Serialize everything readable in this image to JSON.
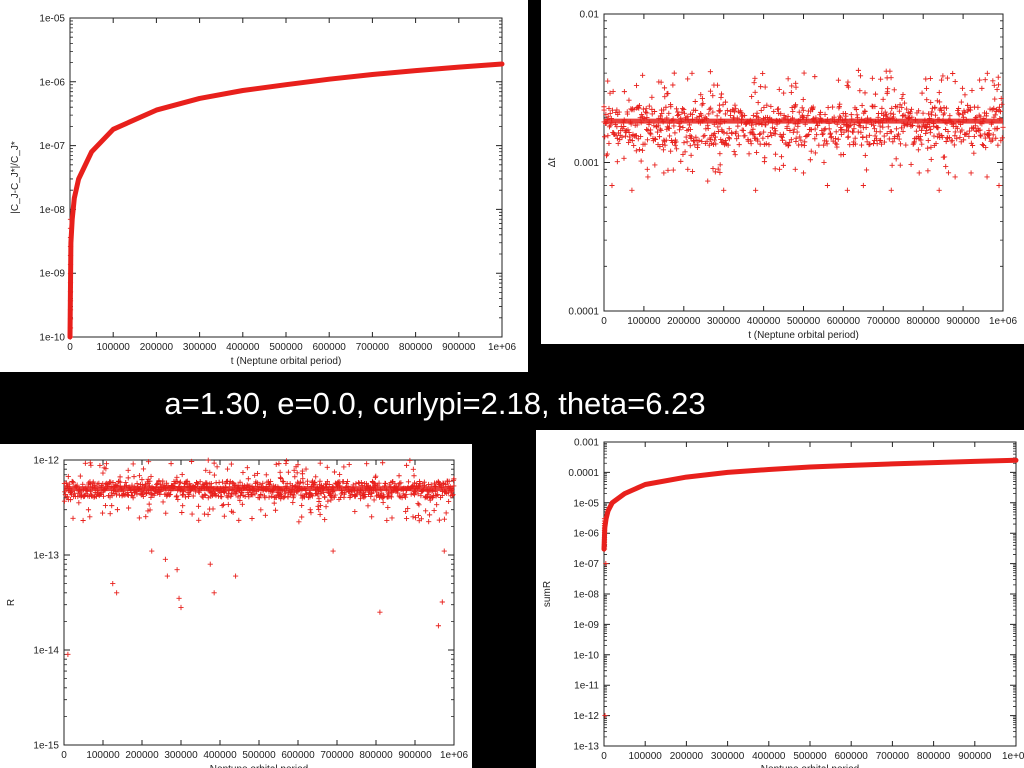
{
  "caption": "a=1.30, e=0.0, curlypi=2.18, theta=6.23",
  "colors": {
    "series": "#e8201c",
    "background": "#000000",
    "panel": "#ffffff",
    "axis": "#222222"
  },
  "chart_data": [
    {
      "id": "top-left",
      "type": "line",
      "title": "",
      "xlabel": "t (Neptune orbital period)",
      "ylabel": "|C_J-C_J*|/C_J*",
      "ylabel_parts": {
        "main": "|C",
        "sub1": "J",
        "mid": "-C",
        "sub2": "J",
        "sup2": "*",
        "tail": "|/C",
        "sub3": "J",
        "sup3": "*"
      },
      "xlim": [
        0,
        1000000
      ],
      "ylim": [
        1e-10,
        1e-05
      ],
      "yscale": "log",
      "xticks": [
        "0",
        "100000",
        "200000",
        "300000",
        "400000",
        "500000",
        "600000",
        "700000",
        "800000",
        "900000",
        "1e+06"
      ],
      "yticks": [
        "1e-10",
        "1e-09",
        "1e-08",
        "1e-07",
        "1e-06",
        "1e-05"
      ],
      "grid": false,
      "series": [
        {
          "x": [
            0,
            2000,
            5000,
            10000,
            20000,
            50000,
            100000,
            200000,
            300000,
            400000,
            500000,
            600000,
            700000,
            800000,
            900000,
            1000000
          ],
          "y": [
            1e-10,
            3e-09,
            7e-09,
            1.5e-08,
            3e-08,
            8e-08,
            1.8e-07,
            3.6e-07,
            5.5e-07,
            7.3e-07,
            9e-07,
            1.1e-06,
            1.3e-06,
            1.5e-06,
            1.7e-06,
            1.9e-06
          ]
        }
      ]
    },
    {
      "id": "top-right",
      "type": "scatter",
      "title": "",
      "xlabel": "t (Neptune orbital period)",
      "ylabel": "Δt",
      "xlim": [
        0,
        1000000
      ],
      "ylim": [
        0.0001,
        0.01
      ],
      "yscale": "log",
      "xticks": [
        "0",
        "100000",
        "200000",
        "300000",
        "400000",
        "500000",
        "600000",
        "700000",
        "800000",
        "900000",
        "1e+06"
      ],
      "yticks": [
        "0.0001",
        "0.001",
        "0.01"
      ],
      "grid": false,
      "series": [
        {
          "band_center": 0.0019,
          "band_low": 0.0013,
          "band_high": 0.0025,
          "sawtooth_period": 83000,
          "outliers_x": [
            20000,
            70000,
            110000,
            150000,
            210000,
            260000,
            300000,
            380000,
            440000,
            500000,
            560000,
            610000,
            650000,
            720000,
            790000,
            840000,
            880000,
            920000,
            960000,
            990000
          ],
          "outliers_y": [
            0.0007,
            0.00065,
            0.0008,
            0.00085,
            0.0009,
            0.00075,
            0.00065,
            0.00065,
            0.0009,
            0.00085,
            0.0007,
            0.00065,
            0.0007,
            0.00065,
            0.00085,
            0.00065,
            0.0008,
            0.00085,
            0.0008,
            0.0007
          ]
        }
      ]
    },
    {
      "id": "bottom-left",
      "type": "scatter",
      "title": "",
      "xlabel": "Neptune orbital period",
      "ylabel": "R",
      "xlim": [
        0,
        1000000
      ],
      "ylim": [
        1e-15,
        1e-12
      ],
      "yscale": "log",
      "xticks": [
        "0",
        "100000",
        "200000",
        "300000",
        "400000",
        "500000",
        "600000",
        "700000",
        "800000",
        "900000",
        "1e+06"
      ],
      "yticks": [
        "1e-15",
        "1e-14",
        "1e-13",
        "1e-12"
      ],
      "grid": false,
      "series": [
        {
          "band_center": 5e-13,
          "band_low": 4e-13,
          "band_high": 6e-13,
          "outliers_x": [
            10000,
            125000,
            135000,
            225000,
            260000,
            265000,
            290000,
            295000,
            300000,
            375000,
            385000,
            440000,
            690000,
            810000,
            960000,
            970000,
            975000
          ],
          "outliers_y": [
            9e-15,
            5e-14,
            4e-14,
            1.1e-13,
            9e-14,
            6e-14,
            7e-14,
            3.5e-14,
            2.8e-14,
            8e-14,
            4e-14,
            6e-14,
            1.1e-13,
            2.5e-14,
            1.8e-14,
            3.2e-14,
            1.1e-13
          ]
        }
      ]
    },
    {
      "id": "bottom-right",
      "type": "line",
      "title": "",
      "xlabel": "Neptune orbital period",
      "ylabel": "sumR",
      "xlim": [
        0,
        1000000
      ],
      "ylim": [
        1e-13,
        0.001
      ],
      "yscale": "log",
      "xticks": [
        "0",
        "100000",
        "200000",
        "300000",
        "400000",
        "500000",
        "600000",
        "700000",
        "800000",
        "900000",
        "1e+06"
      ],
      "yticks": [
        "1e-13",
        "1e-12",
        "1e-11",
        "1e-10",
        "1e-09",
        "1e-08",
        "1e-07",
        "1e-06",
        "1e-05",
        "0.0001",
        "0.001"
      ],
      "grid": false,
      "series": [
        {
          "x": [
            0,
            2000,
            5000,
            10000,
            20000,
            50000,
            100000,
            200000,
            300000,
            400000,
            500000,
            600000,
            700000,
            800000,
            900000,
            1000000
          ],
          "y": [
            3e-07,
            1.5e-06,
            3e-06,
            5.5e-06,
            1e-05,
            2e-05,
            4e-05,
            7e-05,
            0.0001,
            0.000125,
            0.00015,
            0.00017,
            0.00019,
            0.00021,
            0.00023,
            0.00025
          ],
          "outliers_x": [
            0,
            2000
          ],
          "outliers_y": [
            1e-12,
            1e-07
          ]
        }
      ]
    }
  ]
}
